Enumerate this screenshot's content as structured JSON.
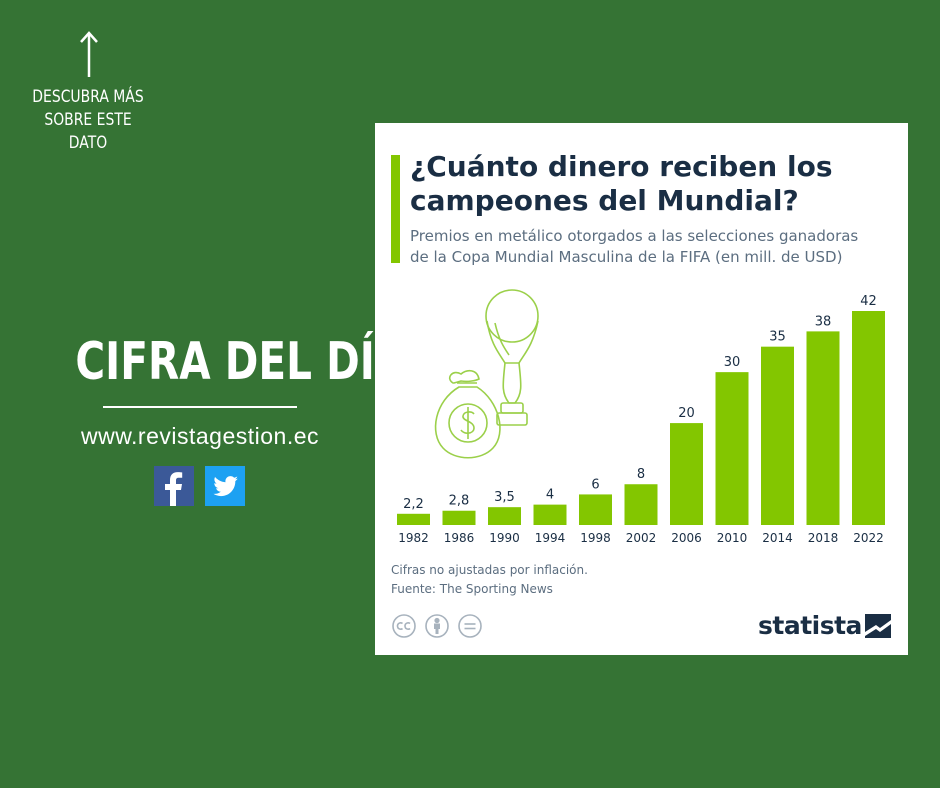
{
  "promo": {
    "discover_lines": [
      "DESCUBRA MÁS",
      "SOBRE ESTE",
      "DATO"
    ],
    "headline": "CIFRA DEL DÍA",
    "website": "www.revistagestion.ec",
    "social": [
      "facebook-icon",
      "twitter-icon"
    ]
  },
  "card": {
    "title_lines": [
      "¿Cuánto dinero reciben los",
      "campeones del Mundial?"
    ],
    "subtitle_lines": [
      "Premios en metálico otorgados a las selecciones ganadoras",
      "de la Copa Mundial Masculina de la FIFA (en mill. de USD)"
    ],
    "note": "Cifras no ajustadas por inflación.",
    "source": "Fuente: The Sporting News",
    "logo": "statista",
    "license_icons": [
      "cc-icon",
      "attribution-icon",
      "no-derivatives-icon"
    ]
  },
  "colors": {
    "background": "#357334",
    "bar": "#83c600",
    "title": "#1a2e44",
    "text": "#5c6e80"
  },
  "chart_data": {
    "type": "bar",
    "categories": [
      "1982",
      "1986",
      "1990",
      "1994",
      "1998",
      "2002",
      "2006",
      "2010",
      "2014",
      "2018",
      "2022"
    ],
    "values": [
      2.2,
      2.8,
      3.5,
      4,
      6,
      8,
      20,
      30,
      35,
      38,
      42
    ],
    "value_labels": [
      "2,2",
      "2,8",
      "3,5",
      "4",
      "6",
      "8",
      "20",
      "30",
      "35",
      "38",
      "42"
    ],
    "title": "¿Cuánto dinero reciben los campeones del Mundial?",
    "subtitle": "Premios en metálico otorgados a las selecciones ganadoras de la Copa Mundial Masculina de la FIFA (en mill. de USD)",
    "xlabel": "",
    "ylabel": "",
    "ylim": [
      0,
      42
    ],
    "grid": false
  }
}
